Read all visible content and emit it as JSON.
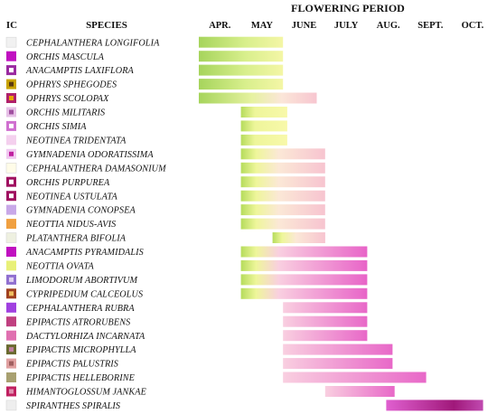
{
  "chart_data": {
    "type": "bar",
    "headers": {
      "ic": "IC",
      "species": "SPECIES",
      "period": "FLOWERING PERIOD"
    },
    "months": [
      "APR.",
      "MAY",
      "JUNE",
      "JULY",
      "AUG.",
      "SEPT.",
      "OCT."
    ],
    "series": [
      {
        "name": "CEPHALANTHERA LONGIFOLIA",
        "start": 1.0,
        "end": 3.0,
        "color": "#f1f1f1",
        "style": "green"
      },
      {
        "name": "ORCHIS MASCULA",
        "start": 1.0,
        "end": 3.0,
        "color": "#c010c0",
        "style": "green"
      },
      {
        "name": "ANACAMPTIS LAXIFLORA",
        "start": 1.0,
        "end": 3.0,
        "color": "#9a2aa0",
        "inner": "#ffffff",
        "style": "green"
      },
      {
        "name": "OPHRYS SPHEGODES",
        "start": 1.0,
        "end": 3.0,
        "color": "#c8a200",
        "inner": "#5a3a10",
        "style": "green"
      },
      {
        "name": "OPHRYS SCOLOPAX",
        "start": 1.0,
        "end": 3.8,
        "color": "#b0206a",
        "inner": "#e8a400",
        "style": "green_pink"
      },
      {
        "name": "ORCHIS MILITARIS",
        "start": 2.0,
        "end": 3.1,
        "color": "#e6c0e6",
        "inner": "#a050a0",
        "style": "yellow"
      },
      {
        "name": "ORCHIS SIMIA",
        "start": 2.0,
        "end": 3.1,
        "color": "#d070d0",
        "inner": "#ffffff",
        "style": "yellow"
      },
      {
        "name": "NEOTINEA TRIDENTATA",
        "start": 2.0,
        "end": 3.1,
        "color": "#f4d0ee",
        "style": "yellow"
      },
      {
        "name": "GYMNADENIA ODORATISSIMA",
        "start": 2.0,
        "end": 4.0,
        "color": "#f0c8f0",
        "inner": "#c020a0",
        "style": "yellow_pink"
      },
      {
        "name": "CEPHALANTHERA DAMASONIUM",
        "start": 2.0,
        "end": 4.0,
        "color": "#fffce8",
        "style": "yellow_pink"
      },
      {
        "name": "ORCHIS PURPUREA",
        "start": 2.0,
        "end": 4.0,
        "color": "#a01060",
        "inner": "#ffffff",
        "style": "yellow_pink"
      },
      {
        "name": "NEOTINEA USTULATA",
        "start": 2.0,
        "end": 4.0,
        "color": "#a01060",
        "inner": "#ffffff",
        "style": "yellow_pink"
      },
      {
        "name": "GYMNADENIA CONOPSEA",
        "start": 2.0,
        "end": 4.0,
        "color": "#c8a8e8",
        "style": "yellow_pink"
      },
      {
        "name": "NEOTTIA NIDUS-AVIS",
        "start": 2.0,
        "end": 4.0,
        "color": "#f0a040",
        "style": "yellow_pink"
      },
      {
        "name": "PLATANTHERA BIFOLIA",
        "start": 2.75,
        "end": 4.0,
        "color": "#eef0e0",
        "style": "yellow_pink"
      },
      {
        "name": "ANACAMPTIS PYRAMIDALIS",
        "start": 2.0,
        "end": 5.0,
        "color": "#c010c0",
        "style": "long_pink"
      },
      {
        "name": "NEOTTIA OVATA",
        "start": 2.0,
        "end": 5.0,
        "color": "#e8f078",
        "style": "long_pink"
      },
      {
        "name": "LIMODORUM ABORTIVUM",
        "start": 2.0,
        "end": 5.0,
        "color": "#9070d0",
        "inner": "#e0d0f0",
        "style": "long_pink"
      },
      {
        "name": "CYPRIPEDIUM CALCEOLUS",
        "start": 2.0,
        "end": 5.0,
        "color": "#a04020",
        "inner": "#f0c060",
        "style": "long_pink"
      },
      {
        "name": "CEPHALANTHERA RUBRA",
        "start": 3.0,
        "end": 5.0,
        "color": "#a040e0",
        "style": "pink"
      },
      {
        "name": "EPIPACTIS ATRORUBENS",
        "start": 3.0,
        "end": 5.0,
        "color": "#c04080",
        "style": "pink"
      },
      {
        "name": "DACTYLORHIZA INCARNATA",
        "start": 3.0,
        "end": 5.0,
        "color": "#e070b0",
        "style": "pink"
      },
      {
        "name": "EPIPACTIS MICROPHYLLA",
        "start": 3.0,
        "end": 5.6,
        "color": "#6a6a30",
        "inner": "#c080a0",
        "style": "pink"
      },
      {
        "name": "EPIPACTIS PALUSTRIS",
        "start": 3.0,
        "end": 5.6,
        "color": "#e0a0a0",
        "inner": "#a06060",
        "style": "pink"
      },
      {
        "name": "EPIPACTIS HELLEBORINE",
        "start": 3.0,
        "end": 6.4,
        "color": "#a8a070",
        "style": "pink"
      },
      {
        "name": "HIMANTOGLOSSUM JANKAE",
        "start": 4.0,
        "end": 5.65,
        "color": "#c02060",
        "inner": "#e090b0",
        "style": "pink"
      },
      {
        "name": "SPIRANTHES SPIRALIS",
        "start": 5.45,
        "end": 7.75,
        "color": "#eeeeee",
        "style": "purple"
      }
    ],
    "xlim": [
      1,
      7.75
    ],
    "grid": false,
    "legend": "none"
  }
}
